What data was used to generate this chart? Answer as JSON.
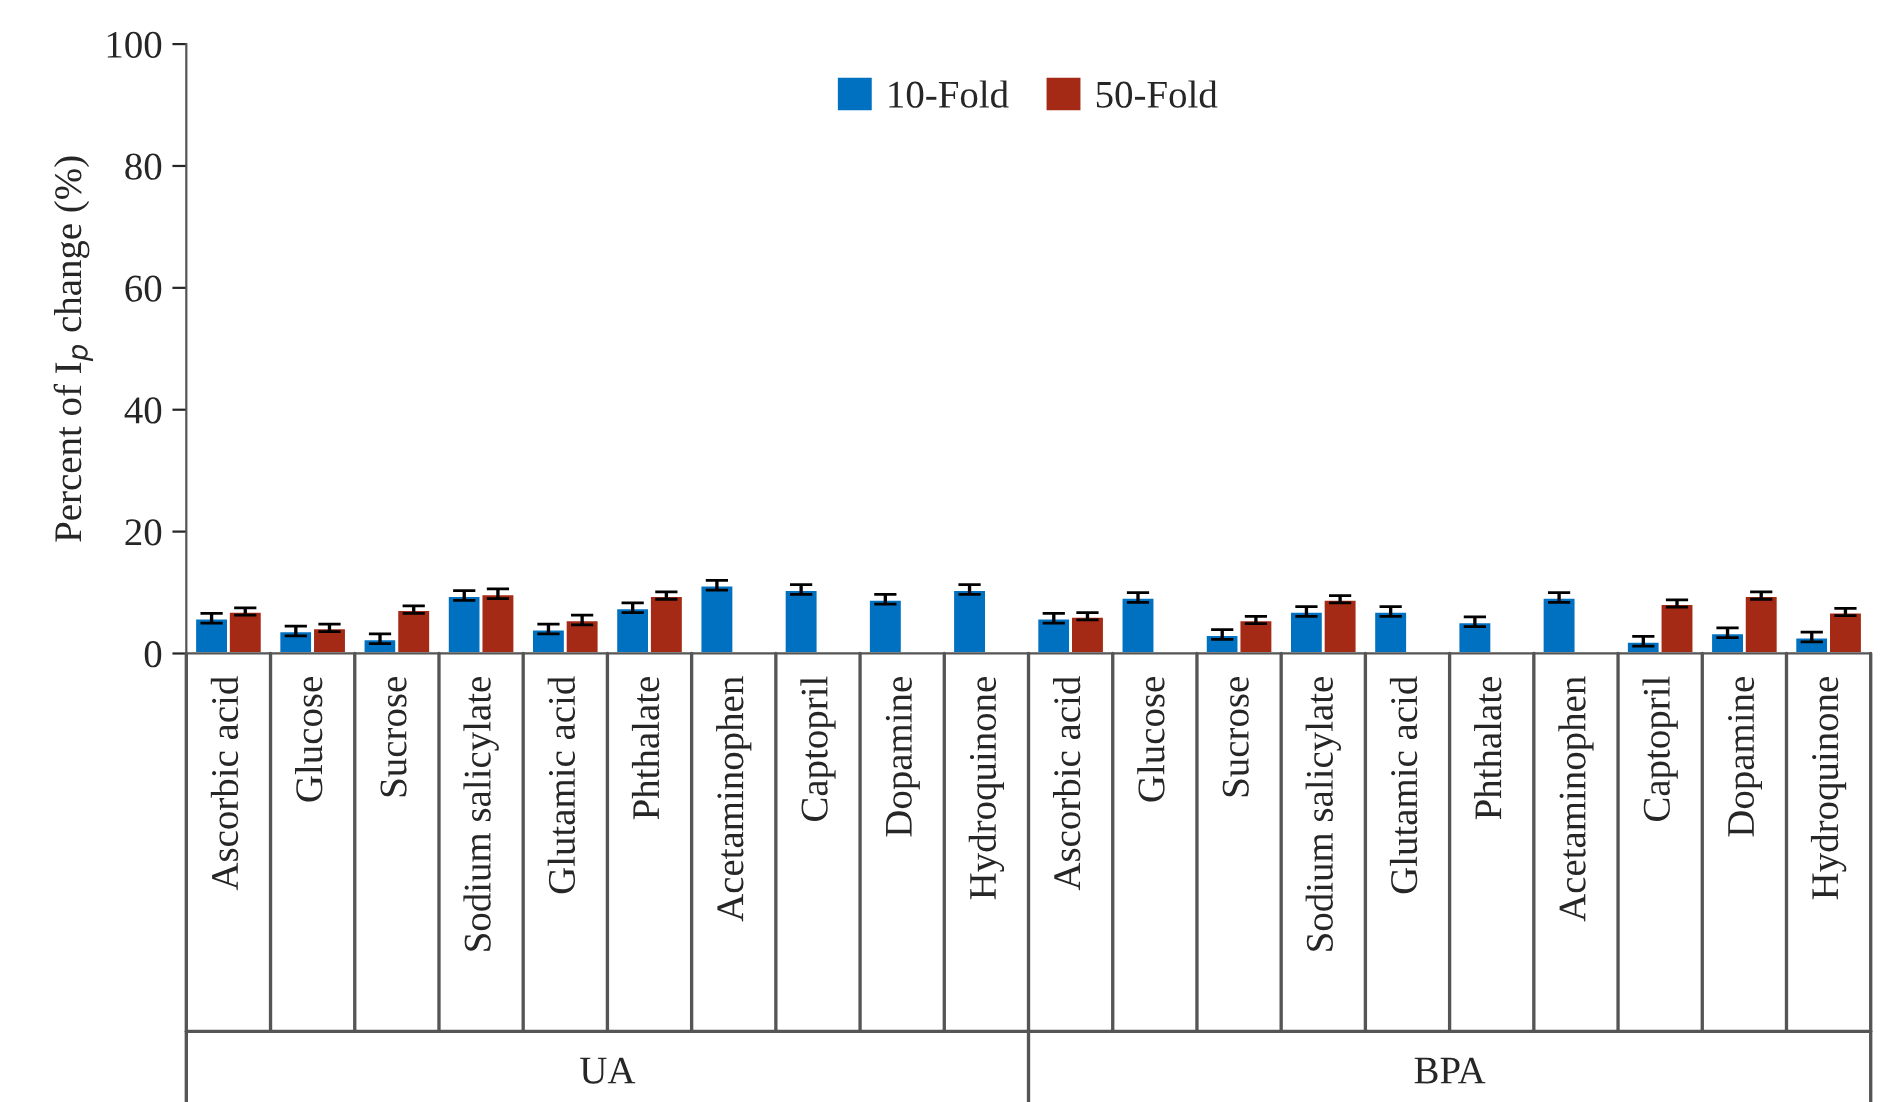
{
  "chart_data": {
    "type": "bar",
    "ylabel": "Percent of I$_{p}$ change (%)",
    "categories": [
      "Ascorbic acid",
      "Glucose",
      "Sucrose",
      "Sodium salicylate",
      "Glutamic acid",
      "Phthalate",
      "Acetaminophen",
      "Captopril",
      "Dopamine",
      "Hydroquinone",
      "Ascorbic acid",
      "Glucose",
      "Sucrose",
      "Sodium salicylate",
      "Glutamic acid",
      "Phthalate",
      "Acetaminophen",
      "Captopril",
      "Dopamine",
      "Hydroquinone"
    ],
    "series": [
      {
        "name": "10-Fold",
        "color": "#0070c0",
        "values": [
          5.8,
          3.7,
          2.4,
          9.5,
          4.0,
          7.5,
          11.2,
          10.5,
          8.9,
          10.5,
          5.8,
          9.2,
          3.1,
          6.9,
          6.9,
          5.2,
          9.2,
          2.0,
          3.4,
          2.7
        ],
        "errors": [
          0.8,
          0.8,
          0.8,
          0.8,
          0.8,
          0.8,
          0.8,
          0.8,
          0.8,
          0.8,
          0.8,
          0.8,
          0.8,
          0.8,
          0.8,
          0.8,
          0.8,
          0.8,
          0.8,
          0.8
        ]
      },
      {
        "name": "50-Fold",
        "color": "#a52a16",
        "values": [
          6.9,
          4.2,
          7.2,
          9.8,
          5.5,
          9.5,
          null,
          null,
          null,
          null,
          6.1,
          null,
          5.5,
          8.9,
          null,
          null,
          null,
          8.2,
          9.5,
          6.8
        ],
        "errors": [
          0.6,
          0.6,
          0.6,
          0.8,
          0.8,
          0.6,
          null,
          null,
          null,
          null,
          0.6,
          null,
          0.6,
          0.6,
          null,
          null,
          null,
          0.6,
          0.6,
          0.6
        ]
      }
    ],
    "annotations": [
      "UA",
      "BPA"
    ],
    "ylim": [
      0,
      100
    ],
    "yticks": [
      0,
      20,
      40,
      60,
      80,
      100
    ],
    "grid": false,
    "legend": "top"
  }
}
